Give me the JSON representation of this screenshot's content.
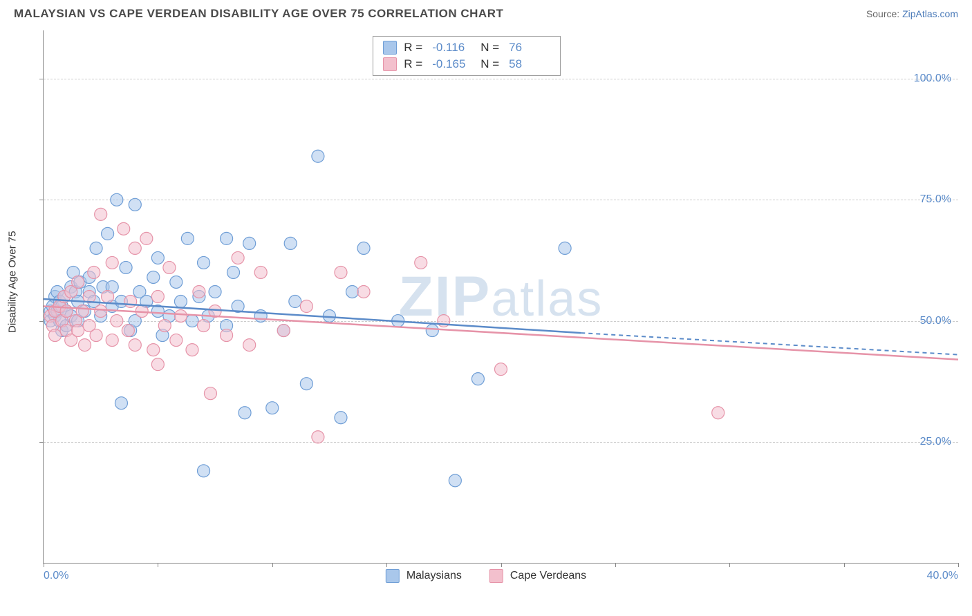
{
  "header": {
    "title": "MALAYSIAN VS CAPE VERDEAN DISABILITY AGE OVER 75 CORRELATION CHART",
    "source_prefix": "Source: ",
    "source_link": "ZipAtlas.com"
  },
  "chart": {
    "type": "scatter",
    "y_label": "Disability Age Over 75",
    "watermark": "ZIPatlas",
    "xlim": [
      0,
      40
    ],
    "ylim": [
      0,
      110
    ],
    "x_ticks": [
      0,
      5,
      10,
      15,
      20,
      25,
      30,
      35,
      40
    ],
    "x_tick_labels": {
      "0": "0.0%",
      "40": "40.0%"
    },
    "y_ticks": [
      25,
      50,
      75,
      100
    ],
    "y_tick_labels": [
      "25.0%",
      "50.0%",
      "75.0%",
      "100.0%"
    ],
    "grid_color": "#cccccc",
    "background_color": "#ffffff",
    "axis_color": "#888888",
    "tick_label_color": "#5b8bc9",
    "marker_radius": 9,
    "marker_opacity": 0.55,
    "series": [
      {
        "name": "Malaysians",
        "fill_color": "#a9c7eb",
        "stroke_color": "#6f9ed6",
        "line_color": "#5b8bc9",
        "R": "-0.116",
        "N": "76",
        "trend": {
          "x1": 0,
          "y1": 54.5,
          "x2": 23.5,
          "y2": 47.5,
          "dash_x2": 40,
          "dash_y2": 43.0
        },
        "points": [
          [
            0.3,
            52
          ],
          [
            0.3,
            50
          ],
          [
            0.4,
            53
          ],
          [
            0.5,
            51
          ],
          [
            0.5,
            55
          ],
          [
            0.6,
            52
          ],
          [
            0.6,
            56
          ],
          [
            0.7,
            54
          ],
          [
            0.7,
            50
          ],
          [
            0.8,
            53
          ],
          [
            0.8,
            48
          ],
          [
            0.9,
            55
          ],
          [
            1.0,
            52
          ],
          [
            1.0,
            49
          ],
          [
            1.2,
            57
          ],
          [
            1.2,
            51
          ],
          [
            1.3,
            60
          ],
          [
            1.4,
            56
          ],
          [
            1.5,
            54
          ],
          [
            1.5,
            50
          ],
          [
            1.6,
            58
          ],
          [
            1.8,
            52
          ],
          [
            2.0,
            56
          ],
          [
            2.0,
            59
          ],
          [
            2.2,
            54
          ],
          [
            2.3,
            65
          ],
          [
            2.5,
            51
          ],
          [
            2.6,
            57
          ],
          [
            2.8,
            68
          ],
          [
            3.0,
            53
          ],
          [
            3.0,
            57
          ],
          [
            3.2,
            75
          ],
          [
            3.4,
            33
          ],
          [
            3.4,
            54
          ],
          [
            3.6,
            61
          ],
          [
            3.8,
            48
          ],
          [
            4.0,
            50
          ],
          [
            4.0,
            74
          ],
          [
            4.2,
            56
          ],
          [
            4.5,
            54
          ],
          [
            4.8,
            59
          ],
          [
            5.0,
            52
          ],
          [
            5.0,
            63
          ],
          [
            5.2,
            47
          ],
          [
            5.5,
            51
          ],
          [
            5.8,
            58
          ],
          [
            6.0,
            54
          ],
          [
            6.3,
            67
          ],
          [
            6.5,
            50
          ],
          [
            6.8,
            55
          ],
          [
            7.0,
            62
          ],
          [
            7.0,
            19
          ],
          [
            7.2,
            51
          ],
          [
            7.5,
            56
          ],
          [
            8.0,
            49
          ],
          [
            8.0,
            67
          ],
          [
            8.3,
            60
          ],
          [
            8.5,
            53
          ],
          [
            8.8,
            31
          ],
          [
            9.0,
            66
          ],
          [
            9.5,
            51
          ],
          [
            10.0,
            32
          ],
          [
            10.5,
            48
          ],
          [
            10.8,
            66
          ],
          [
            11.0,
            54
          ],
          [
            11.5,
            37
          ],
          [
            12.0,
            84
          ],
          [
            12.5,
            51
          ],
          [
            13.0,
            30
          ],
          [
            13.5,
            56
          ],
          [
            14.0,
            65
          ],
          [
            15.5,
            50
          ],
          [
            17.0,
            48
          ],
          [
            18.0,
            17
          ],
          [
            19.0,
            38
          ],
          [
            22.8,
            65
          ]
        ]
      },
      {
        "name": "Cape Verdeans",
        "fill_color": "#f3c0cd",
        "stroke_color": "#e693a8",
        "line_color": "#e693a8",
        "R": "-0.165",
        "N": "58",
        "trend": {
          "x1": 0,
          "y1": 53.0,
          "x2": 40,
          "y2": 42.0
        },
        "points": [
          [
            0.3,
            51
          ],
          [
            0.4,
            49
          ],
          [
            0.5,
            52
          ],
          [
            0.5,
            47
          ],
          [
            0.7,
            53
          ],
          [
            0.8,
            50
          ],
          [
            0.9,
            55
          ],
          [
            1.0,
            48
          ],
          [
            1.0,
            52
          ],
          [
            1.2,
            46
          ],
          [
            1.2,
            56
          ],
          [
            1.4,
            50
          ],
          [
            1.5,
            48
          ],
          [
            1.5,
            58
          ],
          [
            1.7,
            52
          ],
          [
            1.8,
            45
          ],
          [
            2.0,
            49
          ],
          [
            2.0,
            55
          ],
          [
            2.2,
            60
          ],
          [
            2.3,
            47
          ],
          [
            2.5,
            52
          ],
          [
            2.5,
            72
          ],
          [
            2.8,
            55
          ],
          [
            3.0,
            46
          ],
          [
            3.0,
            62
          ],
          [
            3.2,
            50
          ],
          [
            3.5,
            69
          ],
          [
            3.7,
            48
          ],
          [
            3.8,
            54
          ],
          [
            4.0,
            65
          ],
          [
            4.0,
            45
          ],
          [
            4.3,
            52
          ],
          [
            4.5,
            67
          ],
          [
            4.8,
            44
          ],
          [
            5.0,
            55
          ],
          [
            5.0,
            41
          ],
          [
            5.3,
            49
          ],
          [
            5.5,
            61
          ],
          [
            5.8,
            46
          ],
          [
            6.0,
            51
          ],
          [
            6.5,
            44
          ],
          [
            6.8,
            56
          ],
          [
            7.0,
            49
          ],
          [
            7.3,
            35
          ],
          [
            7.5,
            52
          ],
          [
            8.0,
            47
          ],
          [
            8.5,
            63
          ],
          [
            9.0,
            45
          ],
          [
            9.5,
            60
          ],
          [
            10.5,
            48
          ],
          [
            11.5,
            53
          ],
          [
            12.0,
            26
          ],
          [
            13.0,
            60
          ],
          [
            14.0,
            56
          ],
          [
            16.5,
            62
          ],
          [
            17.5,
            50
          ],
          [
            20.0,
            40
          ],
          [
            29.5,
            31
          ]
        ]
      }
    ],
    "legend_bottom": [
      "Malaysians",
      "Cape Verdeans"
    ]
  }
}
